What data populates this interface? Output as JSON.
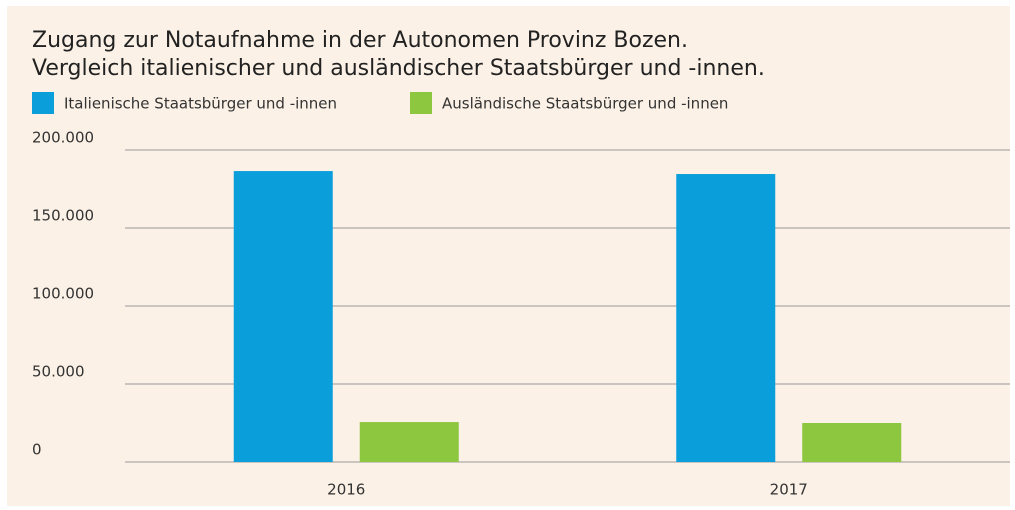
{
  "chart_data": {
    "type": "bar",
    "title": [
      "Zugang zur Notaufnahme in der Autonomen Provinz Bozen.",
      "Vergleich italienischer und ausländischer Staatsbürger und -innen."
    ],
    "categories": [
      "2016",
      "2017"
    ],
    "series": [
      {
        "name": "Italienische Staatsbürger und -innen",
        "color": "#0a9fdb",
        "values": [
          186500,
          184600
        ]
      },
      {
        "name": "Ausländische Staatsbürger und -innen",
        "color": "#8dc63f",
        "values": [
          25600,
          25000
        ]
      }
    ],
    "ylim": [
      0,
      200000
    ],
    "yticks": [
      0,
      {
        "value": 50000,
        "label": "50.000"
      },
      {
        "value": 100000,
        "label": "100.000"
      },
      {
        "value": 150000,
        "label": "150.000"
      },
      {
        "value": 200000,
        "label": "200.000"
      }
    ],
    "grid": true
  }
}
